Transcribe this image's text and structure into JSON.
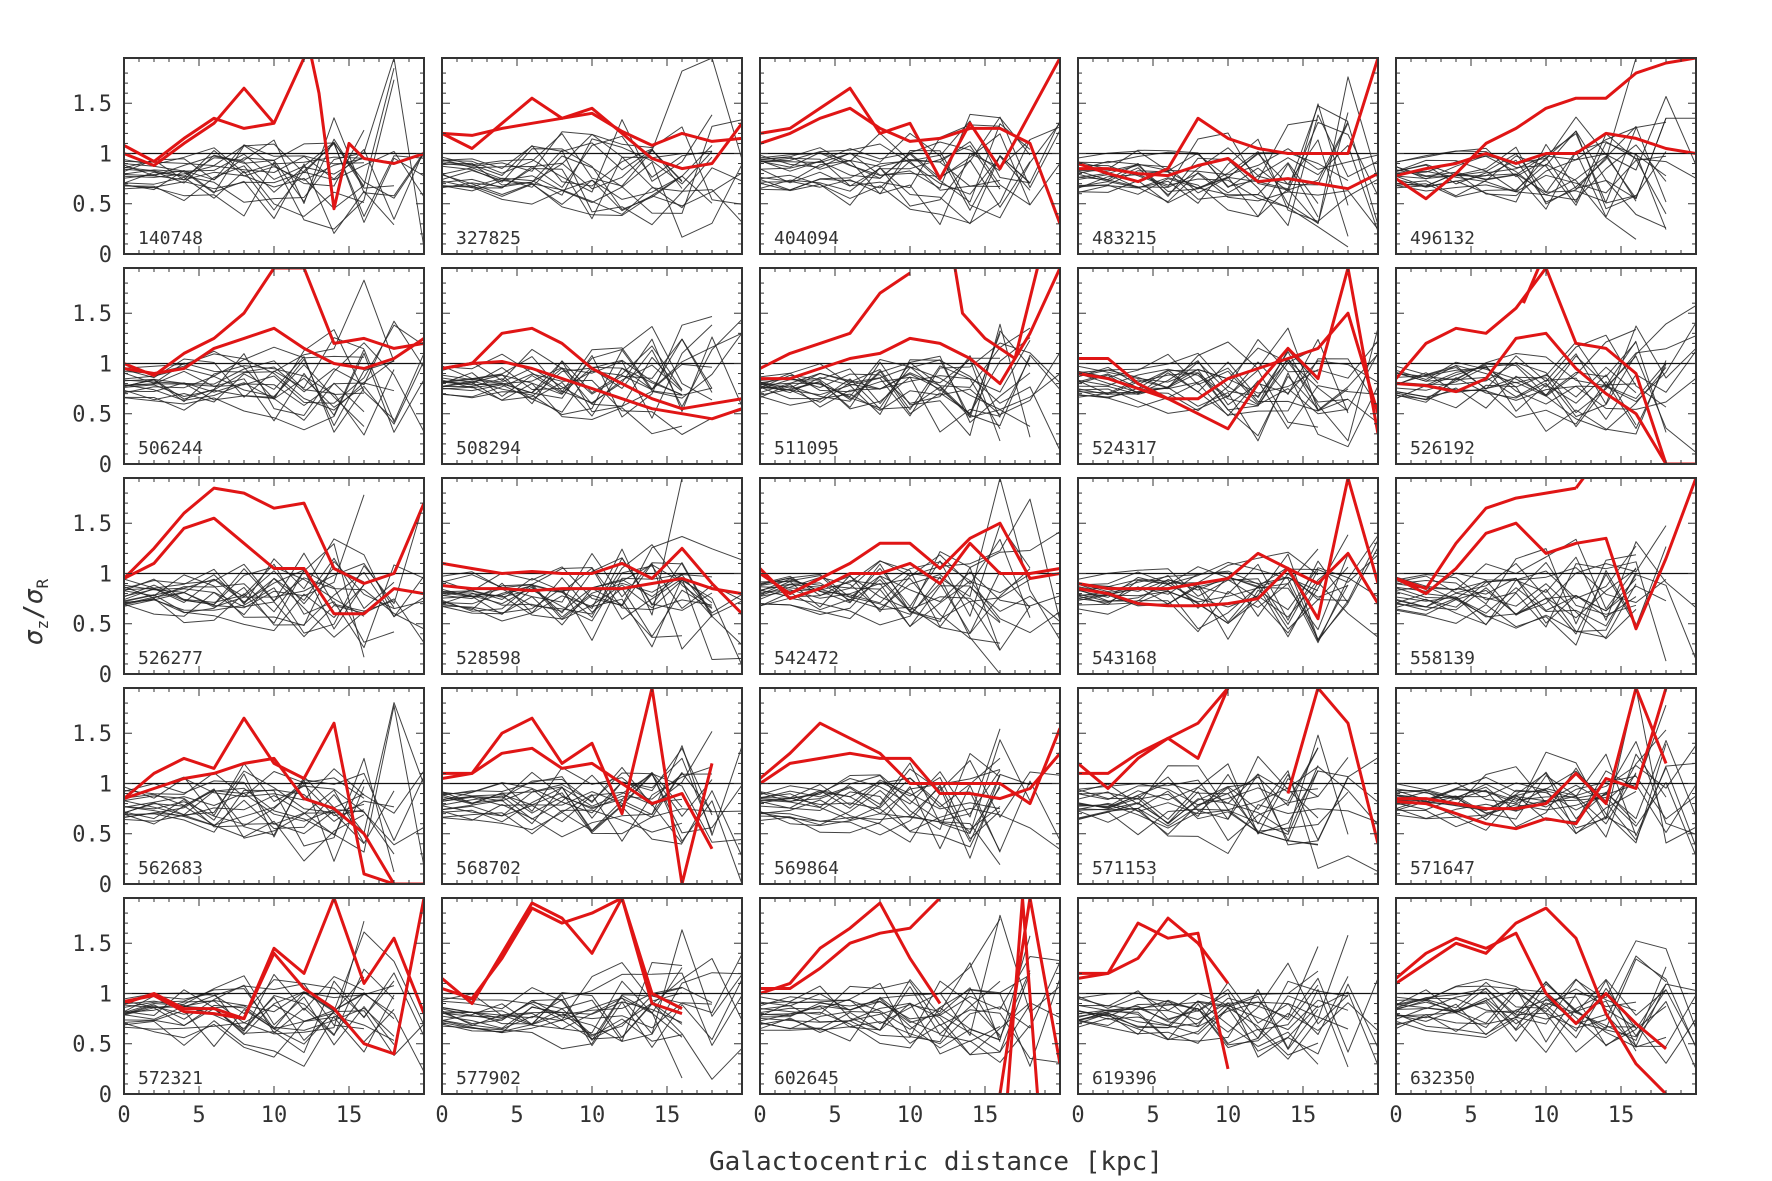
{
  "chart_data": {
    "type": "line",
    "layout": "small-multiples 5x5",
    "xlabel": "Galactocentric distance [kpc]",
    "ylabel": "σz/σR",
    "ylabel_parts": {
      "sigma": "σ",
      "num_sub": "z",
      "slash": "/",
      "den_sub": "R"
    },
    "xlim": [
      0,
      20
    ],
    "ylim": [
      0,
      1.95
    ],
    "x_ticks": [
      0,
      5,
      10,
      15
    ],
    "y_ticks": [
      0,
      0.5,
      1,
      1.5
    ],
    "x_tick_labels": [
      "0",
      "5",
      "10",
      "15"
    ],
    "y_tick_labels": [
      "0",
      "0.5",
      "1",
      "1.5"
    ],
    "reference_line_y": 1,
    "colors": {
      "highlight": "#e01515",
      "background": "#222222",
      "frame": "#333333"
    },
    "x": [
      0,
      2,
      4,
      6,
      8,
      10,
      12,
      14,
      16,
      18,
      20
    ],
    "panels": [
      {
        "id": "140748",
        "red": [
          [
            1.08,
            0.92,
            1.15,
            1.35,
            1.25,
            1.3,
            2.2
          ],
          [
            1.0,
            0.88,
            1.1,
            1.3,
            1.65,
            1.3,
            null,
            null
          ]
        ],
        "red_extra": [
          [
            [
              12.5,
              2.0
            ],
            [
              13,
              1.6
            ],
            [
              14,
              0.45
            ],
            [
              15,
              1.1
            ],
            [
              16,
              0.95
            ],
            [
              18,
              0.9
            ],
            [
              20,
              1.0
            ]
          ]
        ]
      },
      {
        "id": "327825",
        "red": [
          [
            1.2,
            1.05,
            1.3,
            1.55,
            1.35,
            1.45,
            1.2,
            0.95,
            0.85,
            0.9,
            1.3
          ],
          [
            1.2,
            1.18,
            1.25,
            1.3,
            1.35,
            1.4,
            1.22,
            1.08,
            1.2,
            1.12,
            1.15
          ]
        ]
      },
      {
        "id": "404094",
        "red": [
          [
            1.2,
            1.25,
            1.45,
            1.65,
            1.2,
            1.3,
            0.75,
            1.3,
            0.85,
            1.4,
            2.0
          ],
          [
            1.1,
            1.2,
            1.35,
            1.45,
            1.25,
            1.12,
            1.15,
            1.25,
            1.25,
            1.1,
            0.3
          ]
        ]
      },
      {
        "id": "483215",
        "red": [
          [
            0.9,
            0.8,
            0.72,
            0.85,
            1.35,
            1.15,
            1.05,
            1.0,
            1.0,
            1.0,
            2.0
          ],
          [
            0.85,
            0.85,
            0.8,
            0.78,
            0.88,
            0.95,
            0.72,
            0.75,
            0.7,
            0.65,
            0.8
          ]
        ]
      },
      {
        "id": "496132",
        "red": [
          [
            0.75,
            0.55,
            0.8,
            1.1,
            1.25,
            1.45,
            1.55,
            1.55,
            1.8,
            1.9,
            1.95
          ],
          [
            0.78,
            0.85,
            0.9,
            1.0,
            0.9,
            1.0,
            1.0,
            1.2,
            1.15,
            1.05,
            1.0
          ]
        ]
      },
      {
        "id": "506244",
        "red": [
          [
            1.0,
            0.88,
            1.1,
            1.25,
            1.5,
            2.0,
            1.95,
            1.2,
            1.25,
            1.15,
            1.2
          ],
          [
            0.95,
            0.9,
            0.95,
            1.15,
            1.25,
            1.35,
            1.15,
            1.0,
            0.95,
            1.05,
            1.25
          ]
        ]
      },
      {
        "id": "508294",
        "red": [
          [
            0.95,
            1.0,
            1.3,
            1.35,
            1.2,
            0.95,
            0.8,
            0.65,
            0.55,
            0.6,
            0.65
          ],
          [
            0.95,
            1.0,
            1.02,
            0.95,
            0.85,
            0.75,
            0.65,
            0.55,
            0.5,
            0.45,
            0.55
          ]
        ]
      },
      {
        "id": "511095",
        "red": [
          [
            0.95,
            1.1,
            1.2,
            1.3,
            1.7,
            1.9,
            null,
            null,
            null,
            null,
            null
          ],
          [
            0.85,
            0.85,
            0.95,
            1.05,
            1.1,
            1.25,
            1.2,
            1.05,
            0.8,
            1.3,
            2.0
          ]
        ],
        "red_extra": [
          [
            [
              13,
              2.0
            ],
            [
              13.5,
              1.5
            ],
            [
              15,
              1.25
            ],
            [
              17,
              1.05
            ],
            [
              18.5,
              2.0
            ]
          ]
        ]
      },
      {
        "id": "524317",
        "red": [
          [
            1.05,
            1.05,
            0.8,
            0.65,
            0.5,
            0.35,
            0.8,
            1.15,
            0.85,
            2.0,
            0.3
          ],
          [
            0.9,
            0.85,
            0.75,
            0.65,
            0.65,
            0.85,
            0.95,
            1.05,
            1.15,
            1.5,
            0.5
          ]
        ]
      },
      {
        "id": "526192",
        "red": [
          [
            0.85,
            1.2,
            1.35,
            1.3,
            1.55,
            2.0,
            1.2,
            1.15,
            0.9,
            0.0,
            0.0
          ],
          [
            0.8,
            0.78,
            0.72,
            0.85,
            1.25,
            1.3,
            0.95,
            0.7,
            0.5,
            0.0,
            0.0
          ]
        ],
        "red_extra": [
          [
            [
              8.5,
              1.6
            ],
            [
              9.5,
              1.95
            ]
          ]
        ]
      },
      {
        "id": "526277",
        "red": [
          [
            0.95,
            1.25,
            1.6,
            1.85,
            1.8,
            1.65,
            1.7,
            1.05,
            0.9,
            1.0,
            1.7
          ],
          [
            0.95,
            1.1,
            1.45,
            1.55,
            1.3,
            1.05,
            1.05,
            0.6,
            0.6,
            0.85,
            0.8
          ]
        ]
      },
      {
        "id": "528598",
        "red": [
          [
            1.1,
            1.05,
            1.0,
            1.02,
            1.0,
            1.0,
            1.1,
            0.95,
            1.25,
            0.9,
            0.6
          ],
          [
            0.88,
            0.85,
            0.85,
            0.83,
            0.85,
            0.85,
            0.85,
            0.9,
            0.95,
            0.85,
            0.8
          ]
        ]
      },
      {
        "id": "542472",
        "red": [
          [
            1.0,
            0.8,
            0.95,
            1.1,
            1.3,
            1.3,
            1.05,
            1.35,
            1.5,
            0.95,
            1.0
          ],
          [
            1.05,
            0.75,
            0.85,
            1.0,
            1.0,
            1.1,
            0.9,
            1.3,
            1.0,
            1.0,
            1.05
          ]
        ]
      },
      {
        "id": "543168",
        "red": [
          [
            0.9,
            0.85,
            0.85,
            0.85,
            0.9,
            0.95,
            1.2,
            1.05,
            0.55,
            2.0,
            0.9
          ],
          [
            0.85,
            0.8,
            0.7,
            0.68,
            0.68,
            0.7,
            0.75,
            1.05,
            0.9,
            1.2,
            0.7
          ]
        ]
      },
      {
        "id": "558139",
        "red": [
          [
            0.95,
            0.85,
            1.3,
            1.65,
            1.75,
            1.8,
            1.85,
            null,
            null,
            null,
            null
          ],
          [
            0.95,
            0.8,
            1.05,
            1.4,
            1.5,
            1.2,
            1.3,
            1.35,
            0.45,
            1.15,
            2.0
          ]
        ],
        "red_extra": [
          [
            [
              12,
              1.85
            ],
            [
              12.5,
              2.0
            ]
          ]
        ]
      },
      {
        "id": "562683",
        "red": [
          [
            0.85,
            1.1,
            1.25,
            1.15,
            1.65,
            1.2,
            1.05,
            1.6,
            0.1,
            0.0,
            0.0
          ],
          [
            0.85,
            0.95,
            1.05,
            1.1,
            1.2,
            1.25,
            0.85,
            0.75,
            0.5,
            0.0,
            0.0
          ]
        ]
      },
      {
        "id": "568702",
        "red": [
          [
            1.1,
            1.1,
            1.5,
            1.65,
            1.2,
            1.4,
            0.7,
            2.0,
            0.0,
            1.2,
            null
          ],
          [
            1.05,
            1.1,
            1.3,
            1.35,
            1.15,
            1.2,
            1.0,
            0.8,
            0.9,
            0.35,
            null
          ]
        ]
      },
      {
        "id": "569864",
        "red": [
          [
            1.05,
            1.3,
            1.6,
            1.45,
            1.3,
            1.0,
            1.0,
            1.0,
            1.0,
            0.8,
            1.55
          ],
          [
            1.0,
            1.2,
            1.25,
            1.3,
            1.25,
            1.25,
            0.9,
            0.9,
            0.85,
            0.95,
            1.3
          ]
        ]
      },
      {
        "id": "571153",
        "red": [
          [
            1.2,
            0.95,
            1.25,
            1.45,
            1.6,
            2.0,
            null,
            null,
            null,
            null,
            null
          ],
          [
            1.1,
            1.1,
            1.3,
            1.45,
            1.25,
            2.0,
            null,
            0.9,
            2.0,
            1.6,
            0.4
          ]
        ]
      },
      {
        "id": "571647",
        "red": [
          [
            0.85,
            0.85,
            0.8,
            0.75,
            0.75,
            0.8,
            1.1,
            0.8,
            2.0,
            1.2,
            null
          ],
          [
            0.82,
            0.8,
            0.7,
            0.6,
            0.55,
            0.65,
            0.6,
            1.05,
            0.95,
            2.0,
            null
          ]
        ]
      },
      {
        "id": "572321",
        "red": [
          [
            0.9,
            1.0,
            0.85,
            0.85,
            0.75,
            1.45,
            1.2,
            2.0,
            1.1,
            1.55,
            0.8
          ],
          [
            0.92,
            0.98,
            0.82,
            0.8,
            0.75,
            1.4,
            1.05,
            0.85,
            0.5,
            0.4,
            2.0
          ]
        ]
      },
      {
        "id": "577902",
        "red": [
          [
            1.15,
            0.9,
            1.4,
            1.9,
            1.75,
            1.4,
            2.05,
            0.9,
            0.8,
            null,
            null
          ],
          [
            1.05,
            0.95,
            1.35,
            1.85,
            1.7,
            1.8,
            2.0,
            1.0,
            0.85,
            null,
            null
          ]
        ]
      },
      {
        "id": "602645",
        "red": [
          [
            1.0,
            1.1,
            1.45,
            1.65,
            1.9,
            1.35,
            0.9,
            null,
            null,
            null,
            null
          ],
          [
            1.05,
            1.05,
            1.25,
            1.5,
            1.6,
            1.65,
            2.0,
            null,
            0.0,
            2.0,
            0.3
          ]
        ],
        "red_extra": [
          [
            [
              16.5,
              0.0
            ],
            [
              17.5,
              2.0
            ],
            [
              18.5,
              0.0
            ]
          ]
        ]
      },
      {
        "id": "619396",
        "red": [
          [
            1.15,
            1.2,
            1.35,
            1.75,
            1.5,
            1.1,
            null,
            null,
            null,
            null,
            null
          ],
          [
            1.2,
            1.2,
            1.7,
            1.55,
            1.6,
            0.25,
            null,
            null,
            null,
            null,
            null
          ]
        ]
      },
      {
        "id": "632350",
        "red": [
          [
            1.1,
            1.3,
            1.5,
            1.4,
            1.7,
            1.85,
            1.55,
            0.8,
            0.3,
            0.0,
            null
          ],
          [
            1.15,
            1.4,
            1.55,
            1.45,
            1.6,
            1.0,
            0.7,
            1.0,
            0.7,
            0.45,
            null
          ]
        ]
      }
    ]
  }
}
